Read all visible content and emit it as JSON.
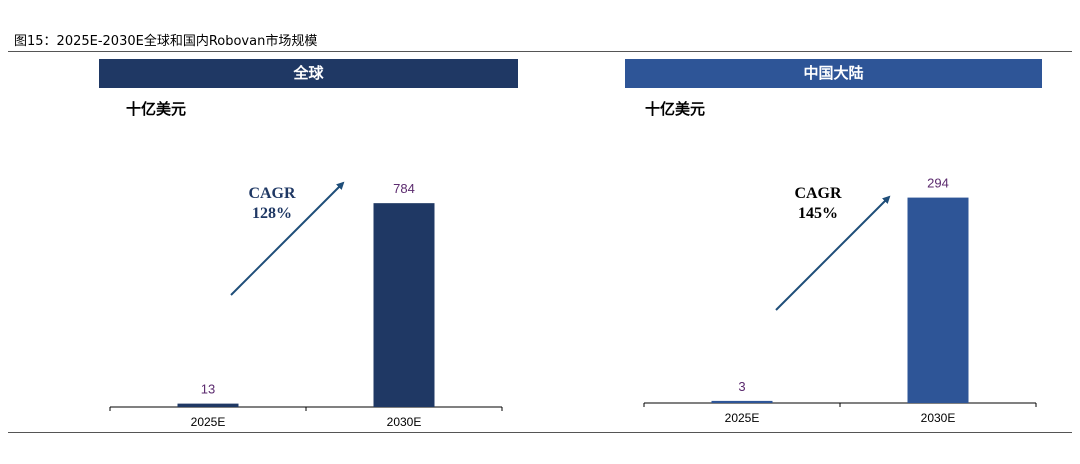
{
  "figure_title": "图15：2025E-2030E全球和国内Robovan市场规模",
  "colors": {
    "banner_global": "#1f3864",
    "banner_china": "#2e5597",
    "bar_global": "#1f3864",
    "bar_china": "#2e5597",
    "arrow": "#1f4e79",
    "value_label": "#5b2a6e",
    "cagr_global": "#1f3864",
    "cagr_china": "#000000"
  },
  "chart_data": [
    {
      "type": "bar",
      "title": "全球",
      "unit": "十亿美元",
      "categories": [
        "2025E",
        "2030E"
      ],
      "values": [
        13,
        784
      ],
      "data_labels": [
        "13",
        "784"
      ],
      "ylim": [
        0,
        1000
      ],
      "annotation": {
        "line1": "CAGR",
        "line2": "128%"
      }
    },
    {
      "type": "bar",
      "title": "中国大陆",
      "unit": "十亿美元",
      "categories": [
        "2025E",
        "2030E"
      ],
      "values": [
        3,
        294
      ],
      "data_labels": [
        "3",
        "294"
      ],
      "ylim": [
        0,
        375
      ],
      "annotation": {
        "line1": "CAGR",
        "line2": "145%"
      }
    }
  ]
}
